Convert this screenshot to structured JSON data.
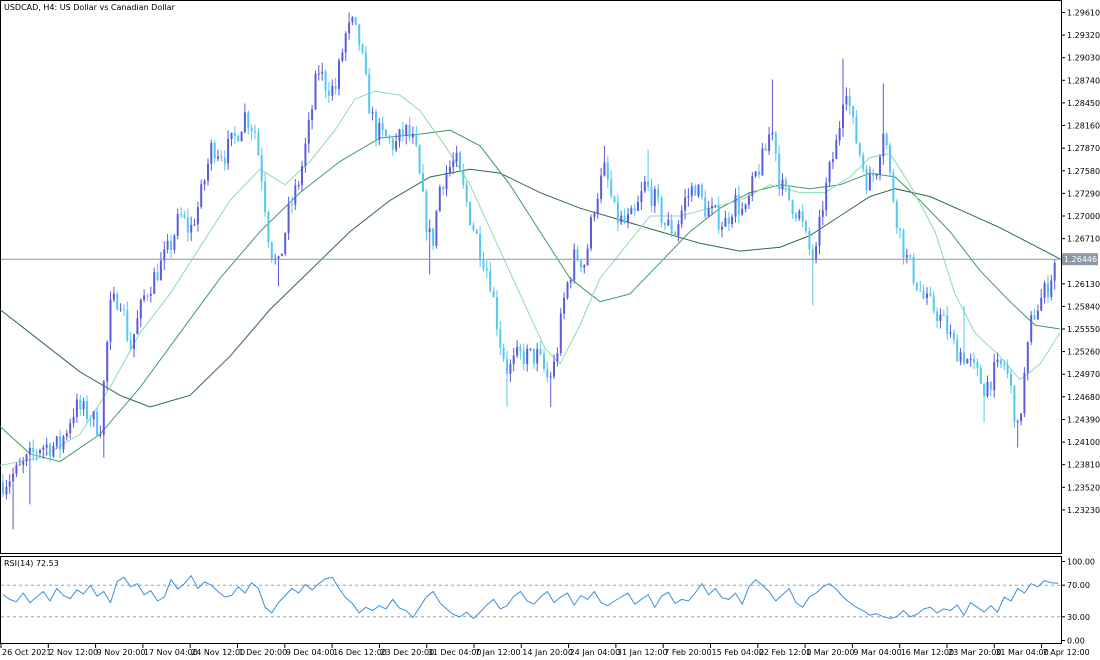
{
  "window": {
    "title": "USDCAD, H4:  US Dollar vs Canadian Dollar",
    "symbol": "USDCAD",
    "timeframe": "H4",
    "description": "US Dollar vs Canadian Dollar"
  },
  "colors": {
    "background": "#ffffff",
    "frame": "#000000",
    "bull": "#5b5bdc",
    "bear": "#54c8f0",
    "ma_fast": "#8fdcae",
    "ma_mid": "#3f9c67",
    "ma_slow": "#2e6b4b",
    "bid_line": "#8a98a8",
    "rsi_line": "#3b8fe0",
    "rsi_level": "#a0a0a0"
  },
  "chart_data": [
    {
      "type": "candlestick",
      "title": "USDCAD, H4:  US Dollar vs Canadian Dollar",
      "ylim": [
        1.2294,
        1.2961
      ],
      "y_ticks": [
        "1.29610",
        "1.29320",
        "1.29030",
        "1.28740",
        "1.28450",
        "1.28160",
        "1.27870",
        "1.27580",
        "1.27290",
        "1.27000",
        "1.26710",
        "1.26130",
        "1.25840",
        "1.25550",
        "1.25260",
        "1.24970",
        "1.24680",
        "1.24390",
        "1.24100",
        "1.23810",
        "1.23520",
        "1.23230"
      ],
      "current_price": "1.26446",
      "x_ticks": [
        "26 Oct 2021",
        "2 Nov 12:00",
        "9 Nov 20:00",
        "17 Nov 04:00",
        "24 Nov 12:00",
        "1 Dec 20:00",
        "9 Dec 04:00",
        "16 Dec 12:00",
        "23 Dec 20:00",
        "31 Dec 04:00",
        "7 Jan 12:00",
        "14 Jan 20:00",
        "24 Jan 04:00",
        "31 Jan 12:00",
        "7 Feb 20:00",
        "15 Feb 04:00",
        "22 Feb 12:00",
        "1 Mar 20:00",
        "9 Mar 04:00",
        "16 Mar 12:00",
        "23 Mar 20:00",
        "31 Mar 04:00",
        "7 Apr 12:00"
      ],
      "close_path": [
        [
          0,
          1.2355
        ],
        [
          20,
          1.2375
        ],
        [
          40,
          1.2405
        ],
        [
          60,
          1.2405
        ],
        [
          75,
          1.2455
        ],
        [
          90,
          1.2445
        ],
        [
          100,
          1.2425
        ],
        [
          110,
          1.258
        ],
        [
          120,
          1.26
        ],
        [
          130,
          1.253
        ],
        [
          145,
          1.26
        ],
        [
          160,
          1.2635
        ],
        [
          170,
          1.266
        ],
        [
          180,
          1.27
        ],
        [
          190,
          1.268
        ],
        [
          200,
          1.272
        ],
        [
          212,
          1.279
        ],
        [
          225,
          1.278
        ],
        [
          235,
          1.28
        ],
        [
          245,
          1.283
        ],
        [
          255,
          1.281
        ],
        [
          262,
          1.275
        ],
        [
          270,
          1.266
        ],
        [
          278,
          1.263
        ],
        [
          288,
          1.27
        ],
        [
          300,
          1.275
        ],
        [
          310,
          1.282
        ],
        [
          318,
          1.289
        ],
        [
          325,
          1.287
        ],
        [
          335,
          1.286
        ],
        [
          345,
          1.293
        ],
        [
          352,
          1.2945
        ],
        [
          360,
          1.292
        ],
        [
          368,
          1.285
        ],
        [
          375,
          1.281
        ],
        [
          385,
          1.28
        ],
        [
          395,
          1.279
        ],
        [
          405,
          1.281
        ],
        [
          415,
          1.279
        ],
        [
          425,
          1.27
        ],
        [
          432,
          1.266
        ],
        [
          440,
          1.274
        ],
        [
          448,
          1.276
        ],
        [
          456,
          1.277
        ],
        [
          462,
          1.274
        ],
        [
          470,
          1.27
        ],
        [
          480,
          1.266
        ],
        [
          490,
          1.262
        ],
        [
          500,
          1.254
        ],
        [
          508,
          1.25
        ],
        [
          518,
          1.252
        ],
        [
          528,
          1.252
        ],
        [
          538,
          1.252
        ],
        [
          548,
          1.249
        ],
        [
          555,
          1.251
        ],
        [
          565,
          1.26
        ],
        [
          575,
          1.265
        ],
        [
          585,
          1.264
        ],
        [
          595,
          1.272
        ],
        [
          605,
          1.276
        ],
        [
          615,
          1.27
        ],
        [
          625,
          1.269
        ],
        [
          635,
          1.27
        ],
        [
          645,
          1.274
        ],
        [
          655,
          1.272
        ],
        [
          665,
          1.269
        ],
        [
          675,
          1.268
        ],
        [
          685,
          1.272
        ],
        [
          695,
          1.274
        ],
        [
          705,
          1.271
        ],
        [
          715,
          1.27
        ],
        [
          725,
          1.269
        ],
        [
          735,
          1.272
        ],
        [
          745,
          1.27
        ],
        [
          755,
          1.275
        ],
        [
          765,
          1.278
        ],
        [
          772,
          1.282
        ],
        [
          780,
          1.274
        ],
        [
          790,
          1.272
        ],
        [
          800,
          1.27
        ],
        [
          808,
          1.266
        ],
        [
          815,
          1.264
        ],
        [
          822,
          1.271
        ],
        [
          830,
          1.276
        ],
        [
          838,
          1.28
        ],
        [
          845,
          1.288
        ],
        [
          852,
          1.282
        ],
        [
          860,
          1.278
        ],
        [
          868,
          1.274
        ],
        [
          876,
          1.276
        ],
        [
          884,
          1.282
        ],
        [
          890,
          1.275
        ],
        [
          898,
          1.269
        ],
        [
          905,
          1.265
        ],
        [
          915,
          1.262
        ],
        [
          925,
          1.259
        ],
        [
          935,
          1.258
        ],
        [
          945,
          1.256
        ],
        [
          955,
          1.253
        ],
        [
          965,
          1.252
        ],
        [
          975,
          1.25
        ],
        [
          985,
          1.248
        ],
        [
          995,
          1.25
        ],
        [
          1005,
          1.251
        ],
        [
          1012,
          1.247
        ],
        [
          1018,
          1.242
        ],
        [
          1025,
          1.25
        ],
        [
          1032,
          1.257
        ],
        [
          1040,
          1.259
        ],
        [
          1048,
          1.261
        ],
        [
          1056,
          1.2645
        ]
      ],
      "spikes": [
        [
          12,
          1.2298,
          "low"
        ],
        [
          30,
          1.233,
          "low"
        ],
        [
          103,
          1.239,
          "low"
        ],
        [
          278,
          1.261,
          "low"
        ],
        [
          350,
          1.2961,
          "high"
        ],
        [
          430,
          1.2625,
          "low"
        ],
        [
          458,
          1.279,
          "high"
        ],
        [
          507,
          1.2455,
          "low"
        ],
        [
          552,
          1.2455,
          "low"
        ],
        [
          603,
          1.279,
          "high"
        ],
        [
          648,
          1.2785,
          "high"
        ],
        [
          771,
          1.2875,
          "high"
        ],
        [
          812,
          1.2585,
          "low"
        ],
        [
          843,
          1.2902,
          "high"
        ],
        [
          883,
          1.287,
          "high"
        ],
        [
          965,
          1.2585,
          "high"
        ],
        [
          983,
          1.2435,
          "low"
        ],
        [
          1019,
          1.2403,
          "low"
        ]
      ],
      "ma_fast_path": [
        [
          0,
          1.238
        ],
        [
          40,
          1.239
        ],
        [
          80,
          1.242
        ],
        [
          110,
          1.248
        ],
        [
          140,
          1.255
        ],
        [
          170,
          1.26
        ],
        [
          200,
          1.266
        ],
        [
          230,
          1.272
        ],
        [
          260,
          1.276
        ],
        [
          285,
          1.274
        ],
        [
          310,
          1.277
        ],
        [
          335,
          1.281
        ],
        [
          355,
          1.285
        ],
        [
          375,
          1.286
        ],
        [
          400,
          1.2855
        ],
        [
          420,
          1.2835
        ],
        [
          445,
          1.279
        ],
        [
          470,
          1.274
        ],
        [
          495,
          1.267
        ],
        [
          520,
          1.26
        ],
        [
          545,
          1.253
        ],
        [
          560,
          1.251
        ],
        [
          580,
          1.256
        ],
        [
          600,
          1.262
        ],
        [
          625,
          1.266
        ],
        [
          650,
          1.27
        ],
        [
          680,
          1.27
        ],
        [
          710,
          1.271
        ],
        [
          740,
          1.272
        ],
        [
          770,
          1.274
        ],
        [
          800,
          1.273
        ],
        [
          825,
          1.273
        ],
        [
          850,
          1.275
        ],
        [
          870,
          1.2775
        ],
        [
          890,
          1.278
        ],
        [
          910,
          1.274
        ],
        [
          935,
          1.268
        ],
        [
          955,
          1.26
        ],
        [
          975,
          1.255
        ],
        [
          1000,
          1.252
        ],
        [
          1020,
          1.249
        ],
        [
          1040,
          1.251
        ],
        [
          1060,
          1.255
        ]
      ],
      "ma_mid_path": [
        [
          0,
          1.243
        ],
        [
          30,
          1.2395
        ],
        [
          60,
          1.2385
        ],
        [
          100,
          1.242
        ],
        [
          140,
          1.248
        ],
        [
          180,
          1.255
        ],
        [
          220,
          1.262
        ],
        [
          260,
          1.268
        ],
        [
          300,
          1.273
        ],
        [
          340,
          1.277
        ],
        [
          380,
          1.28
        ],
        [
          420,
          1.2805
        ],
        [
          450,
          1.281
        ],
        [
          480,
          1.279
        ],
        [
          510,
          1.274
        ],
        [
          540,
          1.268
        ],
        [
          570,
          1.262
        ],
        [
          600,
          1.259
        ],
        [
          630,
          1.26
        ],
        [
          660,
          1.264
        ],
        [
          690,
          1.268
        ],
        [
          720,
          1.271
        ],
        [
          750,
          1.273
        ],
        [
          780,
          1.274
        ],
        [
          810,
          1.2735
        ],
        [
          840,
          1.274
        ],
        [
          870,
          1.2755
        ],
        [
          895,
          1.275
        ],
        [
          920,
          1.272
        ],
        [
          950,
          1.268
        ],
        [
          980,
          1.263
        ],
        [
          1010,
          1.259
        ],
        [
          1035,
          1.256
        ],
        [
          1060,
          1.2555
        ]
      ],
      "ma_slow_path": [
        [
          0,
          1.258
        ],
        [
          40,
          1.254
        ],
        [
          80,
          1.25
        ],
        [
          120,
          1.247
        ],
        [
          150,
          1.2455
        ],
        [
          190,
          1.247
        ],
        [
          230,
          1.252
        ],
        [
          270,
          1.258
        ],
        [
          310,
          1.263
        ],
        [
          350,
          1.268
        ],
        [
          390,
          1.272
        ],
        [
          430,
          1.275
        ],
        [
          470,
          1.276
        ],
        [
          500,
          1.2755
        ],
        [
          540,
          1.273
        ],
        [
          580,
          1.271
        ],
        [
          620,
          1.2695
        ],
        [
          660,
          1.268
        ],
        [
          700,
          1.2665
        ],
        [
          740,
          1.2655
        ],
        [
          780,
          1.266
        ],
        [
          810,
          1.2675
        ],
        [
          840,
          1.27
        ],
        [
          870,
          1.2725
        ],
        [
          895,
          1.2735
        ],
        [
          930,
          1.2725
        ],
        [
          965,
          1.2705
        ],
        [
          1000,
          1.2685
        ],
        [
          1030,
          1.2665
        ],
        [
          1060,
          1.2645
        ]
      ]
    },
    {
      "type": "line",
      "title": "RSI(14) 72.53",
      "ylim": [
        0,
        100
      ],
      "y_ticks": [
        "100.00",
        "70.00",
        "30.00",
        "0.00"
      ],
      "levels": [
        70,
        30
      ],
      "values": [
        58,
        52,
        49,
        60,
        48,
        55,
        62,
        50,
        66,
        57,
        53,
        64,
        59,
        70,
        56,
        62,
        48,
        75,
        80,
        68,
        72,
        58,
        63,
        50,
        55,
        77,
        65,
        72,
        82,
        66,
        74,
        70,
        62,
        55,
        57,
        68,
        60,
        73,
        66,
        42,
        35,
        48,
        57,
        66,
        60,
        71,
        64,
        72,
        78,
        80,
        66,
        54,
        47,
        35,
        42,
        38,
        44,
        40,
        52,
        41,
        38,
        29,
        42,
        55,
        62,
        48,
        40,
        33,
        30,
        36,
        28,
        36,
        45,
        52,
        40,
        44,
        56,
        62,
        50,
        46,
        55,
        62,
        48,
        55,
        60,
        45,
        57,
        52,
        62,
        48,
        44,
        50,
        55,
        60,
        46,
        52,
        58,
        42,
        56,
        61,
        47,
        52,
        50,
        60,
        72,
        58,
        66,
        54,
        52,
        60,
        46,
        68,
        77,
        70,
        62,
        50,
        58,
        66,
        48,
        42,
        55,
        60,
        68,
        72,
        65,
        55,
        48,
        42,
        38,
        32,
        34,
        30,
        28,
        30,
        38,
        30,
        33,
        40,
        42,
        35,
        40,
        38,
        45,
        32,
        48,
        42,
        36,
        44,
        36,
        55,
        50,
        66,
        60,
        72,
        68,
        76,
        73,
        72.53
      ]
    }
  ]
}
